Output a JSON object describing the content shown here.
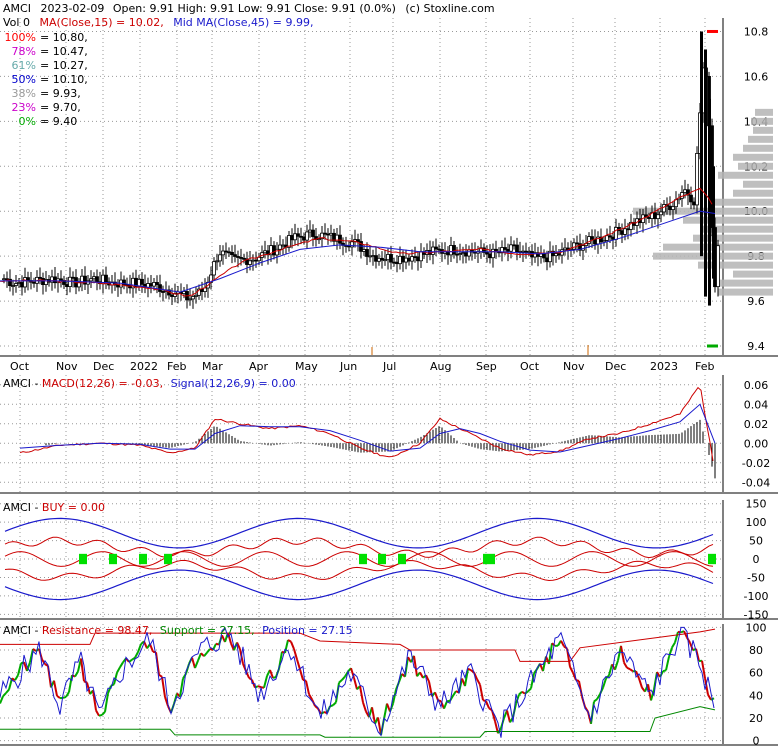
{
  "header": {
    "symbol": "AMCI",
    "date": "2023-02-09",
    "ohlc_text": "Open: 9.91  High: 9.91  Low: 9.91  Close: 9.91 (0.0%)",
    "source": "(c) Stoxline.com",
    "vol_label": "Vol 0",
    "ma15_label": "MA(Close,15) = 10.02,",
    "ma45_label": "Mid MA(Close,45) = 9.99,"
  },
  "colors": {
    "price": "#000000",
    "ma15": "#cc0000",
    "ma45": "#1a1acc",
    "grid": "#999999",
    "volume_profile": "#b4b4b4",
    "buy_marker": "#00e000",
    "support": "#008800"
  },
  "fib_levels": [
    {
      "pct": "100%",
      "value": "= 10.80,",
      "color": "#ff0000"
    },
    {
      "pct": "78%",
      "value": "= 10.47,",
      "color": "#cc00cc"
    },
    {
      "pct": "61%",
      "value": "= 10.27,",
      "color": "#66aaaa"
    },
    {
      "pct": "50%",
      "value": "= 10.10,",
      "color": "#0000cc"
    },
    {
      "pct": "38%",
      "value": "= 9.93,",
      "color": "#999999"
    },
    {
      "pct": "23%",
      "value": "= 9.70,",
      "color": "#cc00cc"
    },
    {
      "pct": "0%",
      "value": "= 9.40",
      "color": "#00aa00"
    }
  ],
  "panels": {
    "macd": {
      "symbol": "AMCI",
      "dash": " - ",
      "macd": "MACD(12,26) = -0.03,",
      "signal": "Signal(12,26,9) = 0.00"
    },
    "buy": {
      "symbol": "AMCI",
      "dash": " - ",
      "label": "BUY = 0.00"
    },
    "srp": {
      "symbol": "AMCI",
      "dash": " - ",
      "resistance": "Resistance = 98.47,",
      "support": "Support = 27.15,",
      "position": "Position = 27.15"
    }
  },
  "chart_data": [
    {
      "type": "candlestick",
      "panel": "price",
      "x_labels": [
        "Oct",
        "Nov",
        "Dec",
        "2022",
        "Feb",
        "Mar",
        "Apr",
        "May",
        "Jun",
        "Jul",
        "Aug",
        "Sep",
        "Oct",
        "Nov",
        "Dec",
        "2023",
        "Feb"
      ],
      "y_ticks": [
        9.4,
        9.6,
        9.8,
        10.0,
        10.2,
        10.4,
        10.6,
        10.8
      ],
      "ylim": [
        9.36,
        10.86
      ],
      "approx_close": [
        [
          0,
          9.7
        ],
        [
          10,
          9.68
        ],
        [
          30,
          9.69
        ],
        [
          50,
          9.7
        ],
        [
          70,
          9.68
        ],
        [
          90,
          9.7
        ],
        [
          110,
          9.68
        ],
        [
          130,
          9.68
        ],
        [
          150,
          9.67
        ],
        [
          170,
          9.64
        ],
        [
          185,
          9.61
        ],
        [
          200,
          9.65
        ],
        [
          215,
          9.82
        ],
        [
          230,
          9.78
        ],
        [
          250,
          9.79
        ],
        [
          270,
          9.83
        ],
        [
          290,
          9.88
        ],
        [
          310,
          9.9
        ],
        [
          330,
          9.88
        ],
        [
          350,
          9.86
        ],
        [
          370,
          9.8
        ],
        [
          390,
          9.79
        ],
        [
          410,
          9.8
        ],
        [
          430,
          9.82
        ],
        [
          450,
          9.83
        ],
        [
          470,
          9.82
        ],
        [
          490,
          9.81
        ],
        [
          510,
          9.83
        ],
        [
          530,
          9.79
        ],
        [
          550,
          9.8
        ],
        [
          570,
          9.84
        ],
        [
          590,
          9.87
        ],
        [
          610,
          9.9
        ],
        [
          630,
          9.95
        ],
        [
          650,
          9.98
        ],
        [
          670,
          10.04
        ],
        [
          680,
          10.1
        ],
        [
          690,
          10.05
        ],
        [
          700,
          10.7
        ],
        [
          705,
          10.4
        ],
        [
          710,
          9.62
        ],
        [
          715,
          9.91
        ]
      ],
      "ma15_approx": [
        [
          0,
          9.69
        ],
        [
          50,
          9.69
        ],
        [
          100,
          9.68
        ],
        [
          150,
          9.66
        ],
        [
          190,
          9.62
        ],
        [
          210,
          9.68
        ],
        [
          240,
          9.77
        ],
        [
          280,
          9.83
        ],
        [
          320,
          9.88
        ],
        [
          360,
          9.86
        ],
        [
          400,
          9.81
        ],
        [
          440,
          9.82
        ],
        [
          480,
          9.83
        ],
        [
          520,
          9.81
        ],
        [
          560,
          9.82
        ],
        [
          600,
          9.88
        ],
        [
          640,
          9.96
        ],
        [
          680,
          10.06
        ],
        [
          700,
          10.1
        ],
        [
          715,
          10.02
        ]
      ],
      "ma45_approx": [
        [
          0,
          9.69
        ],
        [
          60,
          9.69
        ],
        [
          120,
          9.68
        ],
        [
          180,
          9.64
        ],
        [
          220,
          9.7
        ],
        [
          260,
          9.77
        ],
        [
          300,
          9.83
        ],
        [
          340,
          9.85
        ],
        [
          380,
          9.84
        ],
        [
          420,
          9.82
        ],
        [
          460,
          9.82
        ],
        [
          500,
          9.82
        ],
        [
          540,
          9.81
        ],
        [
          580,
          9.83
        ],
        [
          620,
          9.88
        ],
        [
          660,
          9.94
        ],
        [
          700,
          10.0
        ],
        [
          715,
          9.99
        ]
      ]
    },
    {
      "type": "line",
      "panel": "macd",
      "y_ticks": [
        -0.04,
        -0.02,
        0.0,
        0.02,
        0.04,
        0.06
      ],
      "ylim": [
        -0.05,
        0.07
      ],
      "series": [
        {
          "name": "MACD(12,26)",
          "values_approx": [
            [
              20,
              -0.01
            ],
            [
              60,
              -0.002
            ],
            [
              100,
              0.0
            ],
            [
              140,
              -0.002
            ],
            [
              170,
              -0.01
            ],
            [
              195,
              -0.005
            ],
            [
              215,
              0.025
            ],
            [
              240,
              0.02
            ],
            [
              270,
              0.015
            ],
            [
              300,
              0.018
            ],
            [
              330,
              0.01
            ],
            [
              360,
              -0.005
            ],
            [
              390,
              -0.015
            ],
            [
              420,
              0.0
            ],
            [
              440,
              0.025
            ],
            [
              460,
              0.015
            ],
            [
              480,
              0.005
            ],
            [
              500,
              -0.005
            ],
            [
              530,
              -0.012
            ],
            [
              560,
              -0.008
            ],
            [
              590,
              0.005
            ],
            [
              620,
              0.01
            ],
            [
              650,
              0.02
            ],
            [
              680,
              0.03
            ],
            [
              700,
              0.06
            ],
            [
              715,
              -0.03
            ]
          ]
        },
        {
          "name": "Signal(12,26,9)",
          "values_approx": [
            [
              20,
              -0.005
            ],
            [
              60,
              -0.002
            ],
            [
              100,
              0.0
            ],
            [
              140,
              -0.001
            ],
            [
              170,
              -0.006
            ],
            [
              195,
              -0.006
            ],
            [
              215,
              0.01
            ],
            [
              240,
              0.018
            ],
            [
              270,
              0.017
            ],
            [
              300,
              0.017
            ],
            [
              330,
              0.013
            ],
            [
              360,
              0.003
            ],
            [
              390,
              -0.008
            ],
            [
              420,
              -0.005
            ],
            [
              440,
              0.01
            ],
            [
              460,
              0.015
            ],
            [
              480,
              0.01
            ],
            [
              500,
              0.002
            ],
            [
              530,
              -0.007
            ],
            [
              560,
              -0.009
            ],
            [
              590,
              -0.002
            ],
            [
              620,
              0.005
            ],
            [
              650,
              0.013
            ],
            [
              680,
              0.022
            ],
            [
              700,
              0.04
            ],
            [
              715,
              0.0
            ]
          ]
        }
      ]
    },
    {
      "type": "line",
      "panel": "buy",
      "y_ticks": [
        -150,
        -100,
        -50,
        0,
        50,
        100,
        150
      ],
      "ylim": [
        -160,
        160
      ]
    },
    {
      "type": "line",
      "panel": "resistance_support_position",
      "y_ticks": [
        0,
        20,
        40,
        60,
        80,
        100
      ],
      "ylim": [
        -3,
        103
      ],
      "series": [
        {
          "name": "Resistance",
          "values_approx": [
            [
              0,
              85
            ],
            [
              90,
              85
            ],
            [
              95,
              95
            ],
            [
              300,
              95
            ],
            [
              320,
              88
            ],
            [
              400,
              85
            ],
            [
              410,
              80
            ],
            [
              515,
              80
            ],
            [
              520,
              70
            ],
            [
              570,
              70
            ],
            [
              580,
              82
            ],
            [
              700,
              96
            ],
            [
              715,
              98.47
            ]
          ]
        },
        {
          "name": "Support",
          "values_approx": [
            [
              0,
              10
            ],
            [
              170,
              10
            ],
            [
              175,
              5
            ],
            [
              320,
              5
            ],
            [
              325,
              3
            ],
            [
              480,
              3
            ],
            [
              485,
              8
            ],
            [
              650,
              8
            ],
            [
              655,
              20
            ],
            [
              700,
              30
            ],
            [
              715,
              27.15
            ]
          ]
        },
        {
          "name": "Position",
          "values_approx": [
            [
              0,
              40
            ],
            [
              20,
              60
            ],
            [
              40,
              80
            ],
            [
              60,
              30
            ],
            [
              80,
              70
            ],
            [
              100,
              20
            ],
            [
              120,
              60
            ],
            [
              150,
              90
            ],
            [
              170,
              30
            ],
            [
              200,
              80
            ],
            [
              230,
              95
            ],
            [
              260,
              40
            ],
            [
              290,
              85
            ],
            [
              320,
              20
            ],
            [
              350,
              60
            ],
            [
              380,
              10
            ],
            [
              410,
              75
            ],
            [
              440,
              30
            ],
            [
              470,
              60
            ],
            [
              500,
              10
            ],
            [
              530,
              50
            ],
            [
              560,
              90
            ],
            [
              590,
              20
            ],
            [
              620,
              80
            ],
            [
              650,
              40
            ],
            [
              680,
              95
            ],
            [
              700,
              70
            ],
            [
              715,
              27.15
            ]
          ]
        }
      ]
    }
  ]
}
